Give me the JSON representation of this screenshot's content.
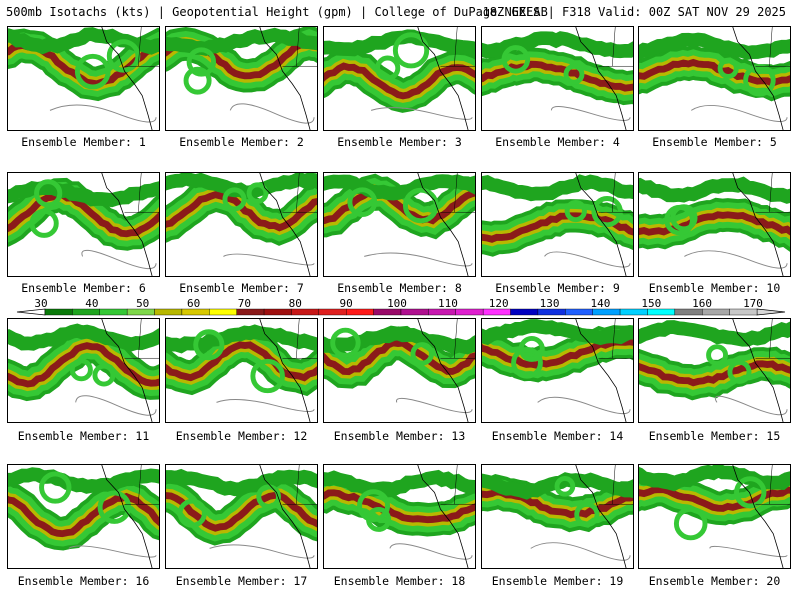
{
  "header": {
    "title_left": "500mb Isotachs (kts) | Geopotential Height (gpm) | College of DuPage NEXLAB",
    "title_right": "18Z GEFS | F318 Valid: 00Z SAT NOV 29 2025"
  },
  "colorbar": {
    "ticks": [
      "30",
      "40",
      "50",
      "60",
      "70",
      "80",
      "90",
      "100",
      "110",
      "120",
      "130",
      "140",
      "150",
      "160",
      "170"
    ],
    "colors": [
      "#0a7a0a",
      "#1fa51f",
      "#35c835",
      "#7fd84a",
      "#b8b800",
      "#d8c800",
      "#ffff00",
      "#8b1a1a",
      "#a01010",
      "#c81818",
      "#e02020",
      "#ff1a1a",
      "#9a0a6a",
      "#b01090",
      "#c818b0",
      "#e020d0",
      "#ff30ff",
      "#0000c0",
      "#1030e0",
      "#2060ff",
      "#00a0ff",
      "#00d0ff",
      "#00ffff",
      "#808080",
      "#a8a8a8",
      "#c8c8c8"
    ]
  },
  "panels": [
    {
      "label": "Ensemble Member: 1"
    },
    {
      "label": "Ensemble Member: 2"
    },
    {
      "label": "Ensemble Member: 3"
    },
    {
      "label": "Ensemble Member: 4"
    },
    {
      "label": "Ensemble Member: 5"
    },
    {
      "label": "Ensemble Member: 6"
    },
    {
      "label": "Ensemble Member: 7"
    },
    {
      "label": "Ensemble Member: 8"
    },
    {
      "label": "Ensemble Member: 9"
    },
    {
      "label": "Ensemble Member: 10"
    },
    {
      "label": "Ensemble Member: 11"
    },
    {
      "label": "Ensemble Member: 12"
    },
    {
      "label": "Ensemble Member: 13"
    },
    {
      "label": "Ensemble Member: 14"
    },
    {
      "label": "Ensemble Member: 15"
    },
    {
      "label": "Ensemble Member: 16"
    },
    {
      "label": "Ensemble Member: 17"
    },
    {
      "label": "Ensemble Member: 18"
    },
    {
      "label": "Ensemble Member: 19"
    },
    {
      "label": "Ensemble Member: 20"
    }
  ]
}
